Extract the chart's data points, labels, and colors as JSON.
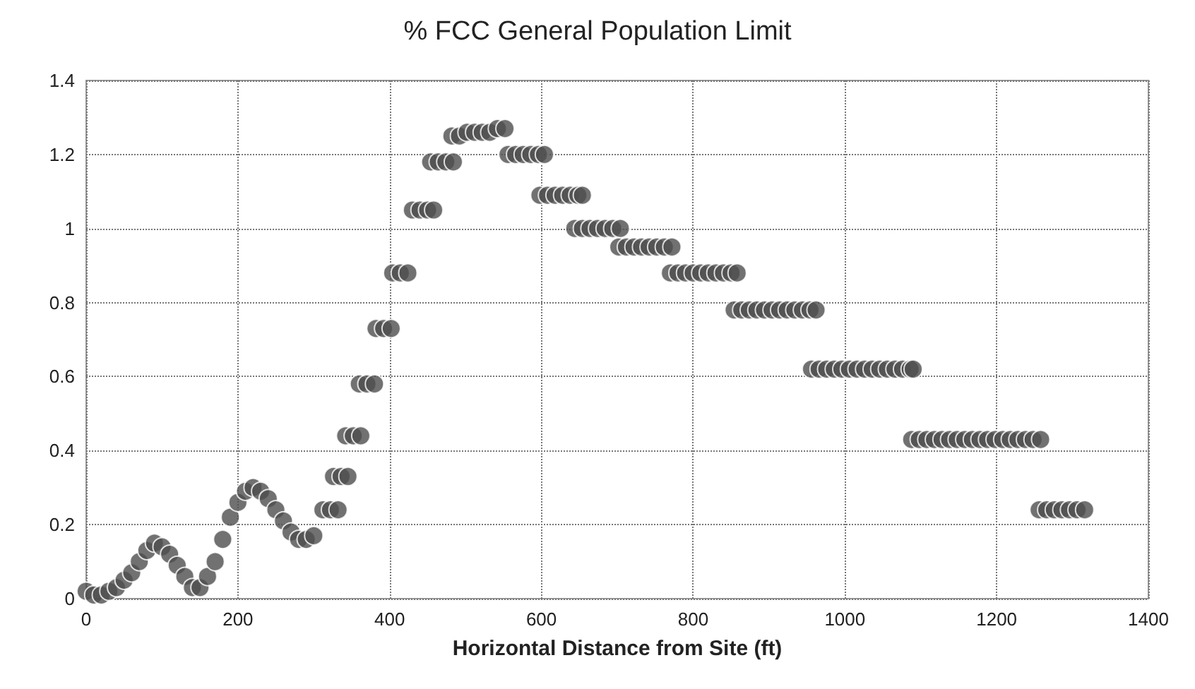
{
  "chart_data": {
    "type": "scatter",
    "title": "% FCC General Population Limit",
    "xlabel": "Horizontal Distance from Site (ft)",
    "x": [
      0,
      10,
      20,
      30,
      40,
      50,
      60,
      70,
      80,
      90,
      100,
      110,
      120,
      130,
      140,
      150,
      160,
      170,
      180,
      190,
      200,
      210,
      220,
      230,
      240,
      250,
      260,
      270,
      280,
      290,
      300,
      312,
      322,
      332,
      326,
      336,
      345,
      342,
      352,
      362,
      360,
      370,
      380,
      382,
      392,
      402,
      404,
      414,
      424,
      430,
      440,
      450,
      458,
      454,
      464,
      474,
      484,
      482,
      492,
      502,
      512,
      522,
      532,
      542,
      552,
      556,
      566,
      576,
      586,
      596,
      604,
      598,
      608,
      618,
      628,
      638,
      648,
      654,
      644,
      654,
      664,
      674,
      684,
      694,
      704,
      702,
      712,
      722,
      732,
      742,
      752,
      762,
      772,
      770,
      780,
      790,
      800,
      810,
      820,
      830,
      840,
      850,
      858,
      854,
      864,
      874,
      884,
      894,
      904,
      914,
      924,
      934,
      944,
      954,
      962,
      956,
      966,
      976,
      986,
      996,
      1006,
      1016,
      1026,
      1036,
      1046,
      1056,
      1066,
      1076,
      1086,
      1090,
      1088,
      1098,
      1108,
      1118,
      1128,
      1138,
      1148,
      1158,
      1168,
      1178,
      1188,
      1198,
      1208,
      1218,
      1228,
      1238,
      1248,
      1258,
      1256,
      1266,
      1276,
      1286,
      1296,
      1306,
      1316
    ],
    "series": [
      {
        "color": "#4d4d4d",
        "values": [
          0.02,
          0.01,
          0.01,
          0.02,
          0.03,
          0.05,
          0.07,
          0.1,
          0.13,
          0.15,
          0.14,
          0.12,
          0.09,
          0.06,
          0.03,
          0.03,
          0.06,
          0.1,
          0.16,
          0.22,
          0.26,
          0.29,
          0.3,
          0.29,
          0.27,
          0.24,
          0.21,
          0.18,
          0.16,
          0.16,
          0.17,
          0.24,
          0.24,
          0.24,
          0.33,
          0.33,
          0.33,
          0.44,
          0.44,
          0.44,
          0.58,
          0.58,
          0.58,
          0.73,
          0.73,
          0.73,
          0.88,
          0.88,
          0.88,
          1.05,
          1.05,
          1.05,
          1.05,
          1.18,
          1.18,
          1.18,
          1.18,
          1.25,
          1.25,
          1.26,
          1.26,
          1.26,
          1.26,
          1.27,
          1.27,
          1.2,
          1.2,
          1.2,
          1.2,
          1.2,
          1.2,
          1.09,
          1.09,
          1.09,
          1.09,
          1.09,
          1.09,
          1.09,
          1.0,
          1.0,
          1.0,
          1.0,
          1.0,
          1.0,
          1.0,
          0.95,
          0.95,
          0.95,
          0.95,
          0.95,
          0.95,
          0.95,
          0.95,
          0.88,
          0.88,
          0.88,
          0.88,
          0.88,
          0.88,
          0.88,
          0.88,
          0.88,
          0.88,
          0.78,
          0.78,
          0.78,
          0.78,
          0.78,
          0.78,
          0.78,
          0.78,
          0.78,
          0.78,
          0.78,
          0.78,
          0.62,
          0.62,
          0.62,
          0.62,
          0.62,
          0.62,
          0.62,
          0.62,
          0.62,
          0.62,
          0.62,
          0.62,
          0.62,
          0.62,
          0.62,
          0.43,
          0.43,
          0.43,
          0.43,
          0.43,
          0.43,
          0.43,
          0.43,
          0.43,
          0.43,
          0.43,
          0.43,
          0.43,
          0.43,
          0.43,
          0.43,
          0.43,
          0.43,
          0.24,
          0.24,
          0.24,
          0.24,
          0.24,
          0.24,
          0.24
        ]
      }
    ],
    "xlim": [
      0,
      1400
    ],
    "xticks": [
      0,
      200,
      400,
      600,
      800,
      1000,
      1200,
      1400
    ],
    "ylim": [
      0,
      1.4
    ],
    "yticks": [
      0,
      0.2,
      0.4,
      0.6,
      0.8,
      1,
      1.2,
      1.4
    ],
    "grid": true,
    "marker": "circle"
  }
}
